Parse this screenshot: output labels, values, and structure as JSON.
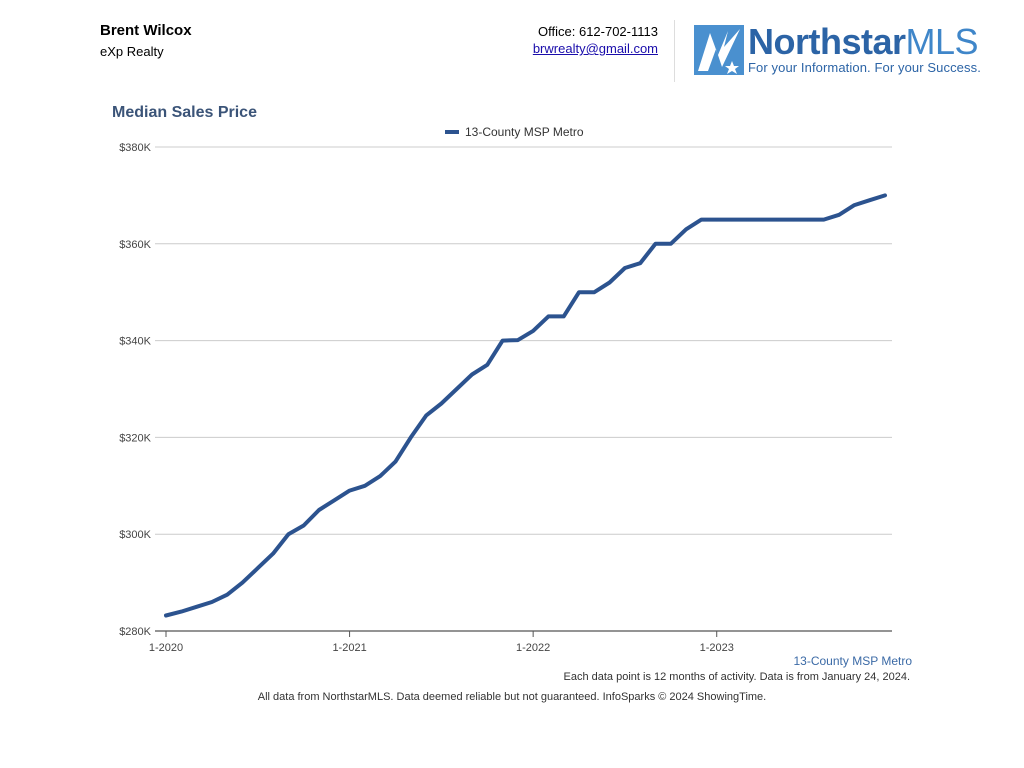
{
  "agent": {
    "name": "Brent Wilcox",
    "company": "eXp Realty"
  },
  "contact": {
    "office": "Office: 612-702-1113",
    "email": "brwrealty@gmail.com"
  },
  "logo": {
    "brand": "Northstar",
    "brand_suffix": "MLS",
    "tagline": "For your Information. For your Success."
  },
  "colors": {
    "series": "#2c538f",
    "logo_blue": "#2c64a6",
    "title": "#3b5478",
    "grid": "#cccccc"
  },
  "footer": {
    "source_label": "13-County MSP Metro",
    "note": "Each data point is 12 months of activity. Data is from January 24, 2024.",
    "disclaimer": "All data from NorthstarMLS. Data deemed reliable but not guaranteed. InfoSparks © 2024 ShowingTime."
  },
  "chart_data": {
    "type": "line",
    "title": "Median Sales Price",
    "xlabel": "",
    "ylabel": "",
    "ylim": [
      280000,
      380000
    ],
    "yticks": [
      280000,
      300000,
      320000,
      340000,
      360000,
      380000
    ],
    "ytick_labels": [
      "$280K",
      "$300K",
      "$320K",
      "$340K",
      "$360K",
      "$380K"
    ],
    "xticks": [
      "1-2020",
      "1-2021",
      "1-2022",
      "1-2023"
    ],
    "grid": true,
    "legend_position": "top-center",
    "x": [
      "1-2020",
      "2-2020",
      "3-2020",
      "4-2020",
      "5-2020",
      "6-2020",
      "7-2020",
      "8-2020",
      "9-2020",
      "10-2020",
      "11-2020",
      "12-2020",
      "1-2021",
      "2-2021",
      "3-2021",
      "4-2021",
      "5-2021",
      "6-2021",
      "7-2021",
      "8-2021",
      "9-2021",
      "10-2021",
      "11-2021",
      "12-2021",
      "1-2022",
      "2-2022",
      "3-2022",
      "4-2022",
      "5-2022",
      "6-2022",
      "7-2022",
      "8-2022",
      "9-2022",
      "10-2022",
      "11-2022",
      "12-2022",
      "1-2023",
      "2-2023",
      "3-2023",
      "4-2023",
      "5-2023",
      "6-2023",
      "7-2023",
      "8-2023",
      "9-2023",
      "10-2023",
      "11-2023",
      "12-2023"
    ],
    "series": [
      {
        "name": "13-County MSP Metro",
        "values": [
          283200,
          284000,
          285000,
          286000,
          287500,
          290000,
          293000,
          296000,
          300000,
          301800,
          305000,
          307000,
          309000,
          310000,
          312000,
          315000,
          320000,
          324500,
          327000,
          330000,
          333000,
          335000,
          340000,
          340100,
          342000,
          345000,
          345000,
          350000,
          350000,
          352000,
          355000,
          356000,
          360000,
          360000,
          363000,
          365000,
          365000,
          365000,
          365000,
          365000,
          365000,
          365000,
          365000,
          365000,
          366000,
          368000,
          369000,
          370000
        ]
      }
    ]
  }
}
